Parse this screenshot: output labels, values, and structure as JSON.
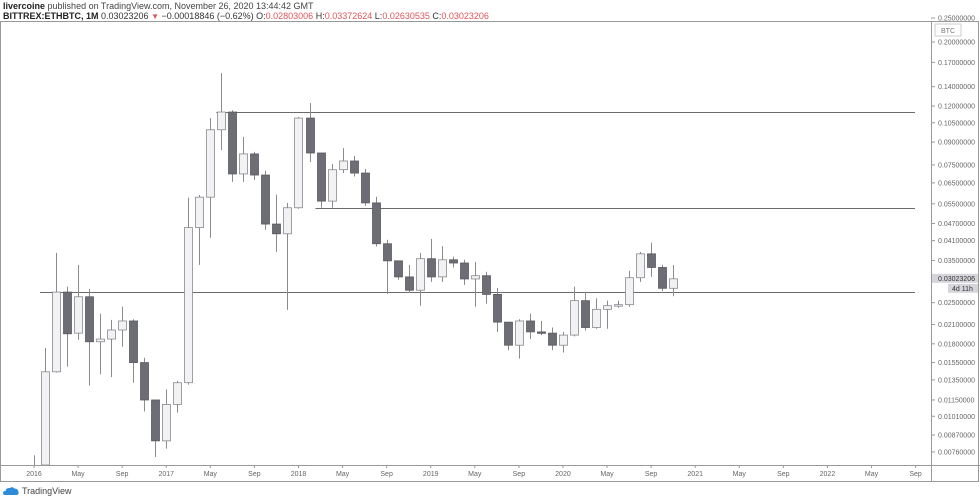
{
  "header": {
    "author": "livercoine",
    "published": "published on TradingView.com, November 26, 2020 13:44:42 GMT",
    "symbol": "BITTREX:ETHBTC, 1M",
    "last": "0.03023206",
    "change": "−0.00018846 (−0.62%)",
    "o_label": "O:",
    "o": "0.02803006",
    "h_label": "H:",
    "h": "0.03372624",
    "l_label": "L:",
    "l": "0.02630535",
    "c_label": "C:",
    "c": "0.03023206"
  },
  "price_axis": {
    "currency": "BTC",
    "ticks": [
      "0.25000000",
      "0.20000000",
      "0.17000000",
      "0.14000000",
      "0.12000000",
      "0.10500000",
      "0.09000000",
      "0.07500000",
      "0.06500000",
      "0.05500000",
      "0.04700000",
      "0.04100000",
      "0.03500000",
      "0.02500000",
      "0.02100000",
      "0.01800000",
      "0.01550000",
      "0.01350000",
      "0.01150000",
      "0.01010000",
      "0.00870000",
      "0.00760000"
    ],
    "current_price_label": "0.03023206",
    "countdown": "4d 11h"
  },
  "time_axis": {
    "ticks": [
      {
        "label": "2016",
        "m": 0
      },
      {
        "label": "May",
        "m": 4
      },
      {
        "label": "Sep",
        "m": 8
      },
      {
        "label": "2017",
        "m": 12
      },
      {
        "label": "May",
        "m": 16
      },
      {
        "label": "Sep",
        "m": 20
      },
      {
        "label": "2018",
        "m": 24
      },
      {
        "label": "May",
        "m": 28
      },
      {
        "label": "Sep",
        "m": 32
      },
      {
        "label": "2019",
        "m": 36
      },
      {
        "label": "May",
        "m": 40
      },
      {
        "label": "Sep",
        "m": 44
      },
      {
        "label": "2020",
        "m": 48
      },
      {
        "label": "May",
        "m": 52
      },
      {
        "label": "Sep",
        "m": 56
      },
      {
        "label": "2021",
        "m": 60
      },
      {
        "label": "May",
        "m": 64
      },
      {
        "label": "Sep",
        "m": 68
      },
      {
        "label": "2022",
        "m": 72
      },
      {
        "label": "May",
        "m": 76
      },
      {
        "label": "Sep",
        "m": 80
      }
    ]
  },
  "chart_data": {
    "type": "candlestick",
    "scale": "log",
    "interval": "1M",
    "start": "2016-01",
    "ohlc": [
      [
        0.0024,
        0.0074,
        0.0021,
        0.0036
      ],
      [
        0.0036,
        0.0174,
        0.0034,
        0.0144
      ],
      [
        0.0144,
        0.0372,
        0.0143,
        0.0272
      ],
      [
        0.0272,
        0.0284,
        0.015,
        0.0195
      ],
      [
        0.0196,
        0.0338,
        0.0186,
        0.0262
      ],
      [
        0.0262,
        0.0279,
        0.0129,
        0.0183
      ],
      [
        0.0183,
        0.0229,
        0.0141,
        0.0187
      ],
      [
        0.0187,
        0.0218,
        0.0138,
        0.0201
      ],
      [
        0.0201,
        0.0242,
        0.0176,
        0.0216
      ],
      [
        0.0216,
        0.0219,
        0.0132,
        0.0155
      ],
      [
        0.0155,
        0.0161,
        0.0105,
        0.0115
      ],
      [
        0.0115,
        0.0115,
        0.0073,
        0.0083
      ],
      [
        0.0083,
        0.0125,
        0.0078,
        0.0111
      ],
      [
        0.0111,
        0.0134,
        0.0104,
        0.0132
      ],
      [
        0.0132,
        0.0577,
        0.013,
        0.0455
      ],
      [
        0.0455,
        0.059,
        0.0338,
        0.058
      ],
      [
        0.058,
        0.109,
        0.0419,
        0.0993
      ],
      [
        0.0993,
        0.1561,
        0.0845,
        0.1144
      ],
      [
        0.1144,
        0.116,
        0.0655,
        0.0698
      ],
      [
        0.0698,
        0.0938,
        0.0655,
        0.0819
      ],
      [
        0.0819,
        0.0832,
        0.0666,
        0.0692
      ],
      [
        0.0692,
        0.0715,
        0.0447,
        0.0468
      ],
      [
        0.0468,
        0.0591,
        0.0375,
        0.0433
      ],
      [
        0.0433,
        0.0554,
        0.0236,
        0.0533
      ],
      [
        0.0533,
        0.11,
        0.0529,
        0.109
      ],
      [
        0.109,
        0.1229,
        0.0768,
        0.0825
      ],
      [
        0.0825,
        0.0825,
        0.0533,
        0.0562
      ],
      [
        0.0562,
        0.0756,
        0.0533,
        0.0722
      ],
      [
        0.0722,
        0.0858,
        0.0703,
        0.0774
      ],
      [
        0.0774,
        0.0806,
        0.0684,
        0.0703
      ],
      [
        0.0703,
        0.0726,
        0.0541,
        0.0554
      ],
      [
        0.0554,
        0.0582,
        0.0391,
        0.04
      ],
      [
        0.04,
        0.0413,
        0.0268,
        0.0349
      ],
      [
        0.0349,
        0.0349,
        0.03,
        0.0307
      ],
      [
        0.0307,
        0.0338,
        0.027,
        0.0276
      ],
      [
        0.0276,
        0.0372,
        0.0244,
        0.0355
      ],
      [
        0.0355,
        0.0416,
        0.0295,
        0.0307
      ],
      [
        0.0307,
        0.0392,
        0.0295,
        0.0352
      ],
      [
        0.0352,
        0.0361,
        0.0331,
        0.0343
      ],
      [
        0.0343,
        0.0352,
        0.0288,
        0.0302
      ],
      [
        0.0302,
        0.0346,
        0.0242,
        0.031
      ],
      [
        0.031,
        0.032,
        0.0248,
        0.0267
      ],
      [
        0.0267,
        0.0281,
        0.0198,
        0.0214
      ],
      [
        0.0214,
        0.0214,
        0.0171,
        0.0178
      ],
      [
        0.0178,
        0.0219,
        0.016,
        0.0216
      ],
      [
        0.0216,
        0.0229,
        0.0187,
        0.0198
      ],
      [
        0.0198,
        0.0216,
        0.0193,
        0.0196
      ],
      [
        0.0196,
        0.0205,
        0.0171,
        0.0178
      ],
      [
        0.0178,
        0.0198,
        0.0168,
        0.0193
      ],
      [
        0.0193,
        0.0284,
        0.0191,
        0.0254
      ],
      [
        0.0254,
        0.0272,
        0.02,
        0.0205
      ],
      [
        0.0205,
        0.0259,
        0.0203,
        0.0237
      ],
      [
        0.0237,
        0.0254,
        0.0203,
        0.0244
      ],
      [
        0.0244,
        0.0254,
        0.024,
        0.0246
      ],
      [
        0.0246,
        0.0322,
        0.0242,
        0.0305
      ],
      [
        0.0305,
        0.0375,
        0.0295,
        0.0369
      ],
      [
        0.0369,
        0.0403,
        0.0307,
        0.0331
      ],
      [
        0.0331,
        0.0338,
        0.0274,
        0.02803
      ],
      [
        0.02803006,
        0.03372624,
        0.02630535,
        0.03023206
      ]
    ],
    "horizontal_lines": [
      {
        "price": 0.1145,
        "from_month": 17
      },
      {
        "price": 0.0533,
        "from_month": 26
      },
      {
        "price": 0.0272,
        "from_month": 1
      }
    ],
    "colors": {
      "up_fill": "#f2f2f4",
      "up_border": "#8a8a8f",
      "down_fill": "#6d6d75",
      "down_border": "#5a5a62",
      "wick": "#8a8a8f",
      "level": "#6a6a6a"
    }
  },
  "footer": {
    "brand": "TradingView"
  }
}
